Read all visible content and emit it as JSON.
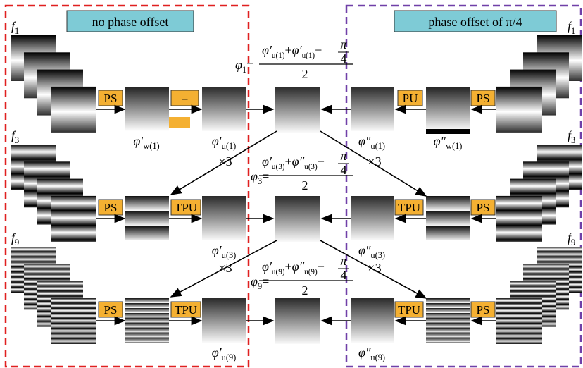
{
  "left_title": "no phase offset",
  "right_title": "phase offset of π/4",
  "frequencies": [
    {
      "base": "f",
      "sub": "1"
    },
    {
      "base": "f",
      "sub": "3"
    },
    {
      "base": "f",
      "sub": "9"
    }
  ],
  "multiplier": "×3",
  "rows": [
    {
      "left_ops": [
        "PS",
        "="
      ],
      "right_ops": [
        "PU",
        "PS"
      ],
      "left_labels": [
        {
          "base": "φ′",
          "sub": "w(1)"
        },
        {
          "base": "φ′",
          "sub": "u(1)"
        }
      ],
      "right_labels": [
        {
          "base": "φ″",
          "sub": "u(1)"
        },
        {
          "base": "φ″",
          "sub": "w(1)"
        }
      ],
      "formula": {
        "lhs": "φ",
        "lhs_sub": "1",
        "eq": "=",
        "t1": "φ′",
        "t1_sub": "u(1)",
        "op": "+",
        "t2": "φ′",
        "t2_sub": "u(1)",
        "minus": "−",
        "pi": "π",
        "four": "4",
        "den": "2"
      }
    },
    {
      "left_ops": [
        "PS",
        "TPU"
      ],
      "right_ops": [
        "TPU",
        "PS"
      ],
      "left_labels": [
        {
          "base": "φ′",
          "sub": "u(3)"
        }
      ],
      "right_labels": [
        {
          "base": "φ″",
          "sub": "u(3)"
        }
      ],
      "formula": {
        "lhs": "φ",
        "lhs_sub": "3",
        "eq": "=",
        "t1": "φ′",
        "t1_sub": "u(3)",
        "op": "+",
        "t2": "φ″",
        "t2_sub": "u(3)",
        "minus": "−",
        "pi": "π",
        "four": "4",
        "den": "2"
      }
    },
    {
      "left_ops": [
        "PS",
        "TPU"
      ],
      "right_ops": [
        "TPU",
        "PS"
      ],
      "left_labels": [
        {
          "base": "φ′",
          "sub": "u(9)"
        }
      ],
      "right_labels": [
        {
          "base": "φ″",
          "sub": "u(9)"
        }
      ],
      "formula": {
        "lhs": "φ",
        "lhs_sub": "9",
        "eq": "=",
        "t1": "φ′",
        "t1_sub": "u(9)",
        "op": "+",
        "t2": "φ″",
        "t2_sub": "u(9)",
        "minus": "−",
        "pi": "π",
        "four": "4",
        "den": "2"
      }
    }
  ]
}
